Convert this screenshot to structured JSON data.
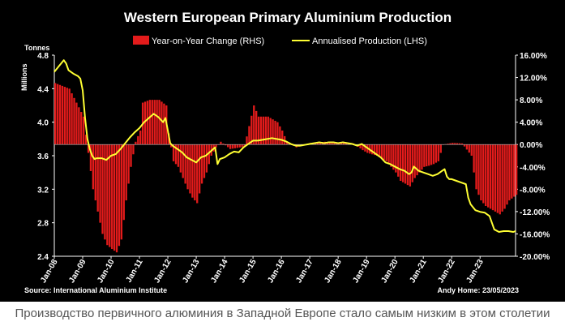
{
  "chart_data": {
    "type": "bar+line",
    "title": "Western European Primary Aluminium Production",
    "left_axis_label": "Tonnes",
    "left_axis_sublabel": "Millions",
    "source": "Source: International Aluminium Institute",
    "credit": "Andy Home: 23/05/2023",
    "legend": {
      "bars": "Year-on-Year Change (RHS)",
      "line": "Annualised Production (LHS)"
    },
    "colors": {
      "bars": "#e31b1b",
      "line": "#ffff33",
      "background": "#000000",
      "text": "#ffffff"
    },
    "x_tick_labels": [
      "Jan-08",
      "Jan-09",
      "Jan-10",
      "Jan-11",
      "Jan-12",
      "Jan-13",
      "Jan-14",
      "Jan-15",
      "Jan-16",
      "Jan-17",
      "Jan-18",
      "Jan-19",
      "Jan-20",
      "Jan-21",
      "Jan-22",
      "Jan-23"
    ],
    "x_range": [
      "Jan-08",
      "Apr-23"
    ],
    "left_axis": {
      "min": 2.4,
      "max": 4.8,
      "ticks": [
        "2.4",
        "2.8",
        "3.2",
        "3.6",
        "4.0",
        "4.4",
        "4.8"
      ]
    },
    "right_axis": {
      "min": -20,
      "max": 16,
      "ticks": [
        "-20.00%",
        "-16.00%",
        "-12.00%",
        "-8.00%",
        "-4.00%",
        "0.00%",
        "4.00%",
        "8.00%",
        "12.00%",
        "16.00%"
      ]
    },
    "bar_keypoints_month_pct": [
      [
        0,
        11
      ],
      [
        6,
        10
      ],
      [
        12,
        5
      ],
      [
        16,
        -8
      ],
      [
        20,
        -16
      ],
      [
        22,
        -18
      ],
      [
        24,
        -18.7
      ],
      [
        26,
        -19.3
      ],
      [
        28,
        -17
      ],
      [
        30,
        -10
      ],
      [
        32,
        -4
      ],
      [
        34,
        0.5
      ],
      [
        36,
        2.5
      ],
      [
        37,
        7.5
      ],
      [
        40,
        8
      ],
      [
        44,
        8
      ],
      [
        47,
        7
      ],
      [
        48,
        2
      ],
      [
        50,
        -3
      ],
      [
        52,
        -4
      ],
      [
        54,
        -6
      ],
      [
        56,
        -8
      ],
      [
        58,
        -9.5
      ],
      [
        60,
        -10.5
      ],
      [
        62,
        -7
      ],
      [
        64,
        -5
      ],
      [
        66,
        -2
      ],
      [
        68,
        -0.5
      ],
      [
        70,
        0.5
      ],
      [
        74,
        -0.8
      ],
      [
        80,
        -0.4
      ],
      [
        84,
        7
      ],
      [
        86,
        5
      ],
      [
        90,
        5
      ],
      [
        94,
        4
      ],
      [
        96,
        2.5
      ],
      [
        98,
        0.5
      ],
      [
        102,
        -0.5
      ],
      [
        108,
        0.3
      ],
      [
        114,
        0.5
      ],
      [
        120,
        0.3
      ],
      [
        126,
        0.2
      ],
      [
        130,
        -1
      ],
      [
        132,
        -1.5
      ],
      [
        136,
        -2
      ],
      [
        140,
        -3
      ],
      [
        144,
        -5
      ],
      [
        146,
        -6.5
      ],
      [
        148,
        -7
      ],
      [
        150,
        -7.5
      ],
      [
        152,
        -6
      ],
      [
        154,
        -5
      ],
      [
        156,
        -4
      ],
      [
        158,
        -3.8
      ],
      [
        160,
        -3.5
      ],
      [
        162,
        -3
      ],
      [
        164,
        0
      ],
      [
        168,
        0.3
      ],
      [
        172,
        0.2
      ],
      [
        176,
        -2
      ],
      [
        178,
        -8
      ],
      [
        180,
        -10
      ],
      [
        182,
        -11
      ],
      [
        184,
        -11.5
      ],
      [
        186,
        -12
      ],
      [
        188,
        -12.5
      ],
      [
        190,
        -11.5
      ],
      [
        192,
        -10
      ],
      [
        195,
        -9
      ]
    ],
    "line_points_month_value": [
      [
        0,
        4.6
      ],
      [
        2,
        4.67
      ],
      [
        4,
        4.74
      ],
      [
        5,
        4.7
      ],
      [
        6,
        4.62
      ],
      [
        8,
        4.58
      ],
      [
        10,
        4.55
      ],
      [
        11,
        4.52
      ],
      [
        12,
        4.38
      ],
      [
        13,
        4.05
      ],
      [
        14,
        3.8
      ],
      [
        15,
        3.68
      ],
      [
        16,
        3.6
      ],
      [
        17,
        3.56
      ],
      [
        18,
        3.57
      ],
      [
        20,
        3.57
      ],
      [
        22,
        3.55
      ],
      [
        24,
        3.6
      ],
      [
        26,
        3.62
      ],
      [
        28,
        3.68
      ],
      [
        30,
        3.75
      ],
      [
        32,
        3.82
      ],
      [
        34,
        3.88
      ],
      [
        36,
        3.93
      ],
      [
        38,
        4.0
      ],
      [
        40,
        4.05
      ],
      [
        42,
        4.1
      ],
      [
        44,
        4.06
      ],
      [
        46,
        4.0
      ],
      [
        47,
        4.05
      ],
      [
        48,
        3.9
      ],
      [
        49,
        3.75
      ],
      [
        50,
        3.72
      ],
      [
        52,
        3.68
      ],
      [
        54,
        3.64
      ],
      [
        56,
        3.58
      ],
      [
        58,
        3.55
      ],
      [
        60,
        3.52
      ],
      [
        61,
        3.55
      ],
      [
        62,
        3.58
      ],
      [
        64,
        3.6
      ],
      [
        66,
        3.65
      ],
      [
        68,
        3.7
      ],
      [
        69,
        3.5
      ],
      [
        70,
        3.56
      ],
      [
        72,
        3.58
      ],
      [
        74,
        3.62
      ],
      [
        76,
        3.65
      ],
      [
        78,
        3.64
      ],
      [
        80,
        3.7
      ],
      [
        82,
        3.74
      ],
      [
        84,
        3.78
      ],
      [
        86,
        3.78
      ],
      [
        88,
        3.79
      ],
      [
        90,
        3.8
      ],
      [
        92,
        3.81
      ],
      [
        94,
        3.8
      ],
      [
        96,
        3.79
      ],
      [
        98,
        3.77
      ],
      [
        100,
        3.74
      ],
      [
        102,
        3.72
      ],
      [
        104,
        3.72
      ],
      [
        106,
        3.73
      ],
      [
        108,
        3.74
      ],
      [
        110,
        3.75
      ],
      [
        112,
        3.76
      ],
      [
        114,
        3.75
      ],
      [
        116,
        3.76
      ],
      [
        118,
        3.76
      ],
      [
        120,
        3.75
      ],
      [
        122,
        3.76
      ],
      [
        124,
        3.75
      ],
      [
        126,
        3.74
      ],
      [
        128,
        3.72
      ],
      [
        130,
        3.74
      ],
      [
        132,
        3.7
      ],
      [
        134,
        3.66
      ],
      [
        136,
        3.62
      ],
      [
        138,
        3.58
      ],
      [
        140,
        3.52
      ],
      [
        142,
        3.5
      ],
      [
        144,
        3.47
      ],
      [
        146,
        3.44
      ],
      [
        148,
        3.42
      ],
      [
        150,
        3.38
      ],
      [
        151,
        3.4
      ],
      [
        152,
        3.47
      ],
      [
        154,
        3.42
      ],
      [
        156,
        3.4
      ],
      [
        158,
        3.38
      ],
      [
        160,
        3.36
      ],
      [
        162,
        3.38
      ],
      [
        164,
        3.42
      ],
      [
        165,
        3.44
      ],
      [
        166,
        3.35
      ],
      [
        167,
        3.32
      ],
      [
        168,
        3.32
      ],
      [
        170,
        3.3
      ],
      [
        172,
        3.28
      ],
      [
        174,
        3.26
      ],
      [
        175,
        3.1
      ],
      [
        176,
        3.02
      ],
      [
        178,
        2.95
      ],
      [
        180,
        2.93
      ],
      [
        182,
        2.92
      ],
      [
        184,
        2.88
      ],
      [
        185,
        2.8
      ],
      [
        186,
        2.72
      ],
      [
        188,
        2.69
      ],
      [
        190,
        2.7
      ],
      [
        192,
        2.7
      ],
      [
        194,
        2.69
      ],
      [
        195,
        2.7
      ]
    ]
  },
  "caption": "Производство первичного алюминия в Западной Европе стало самым низким в этом столетии"
}
